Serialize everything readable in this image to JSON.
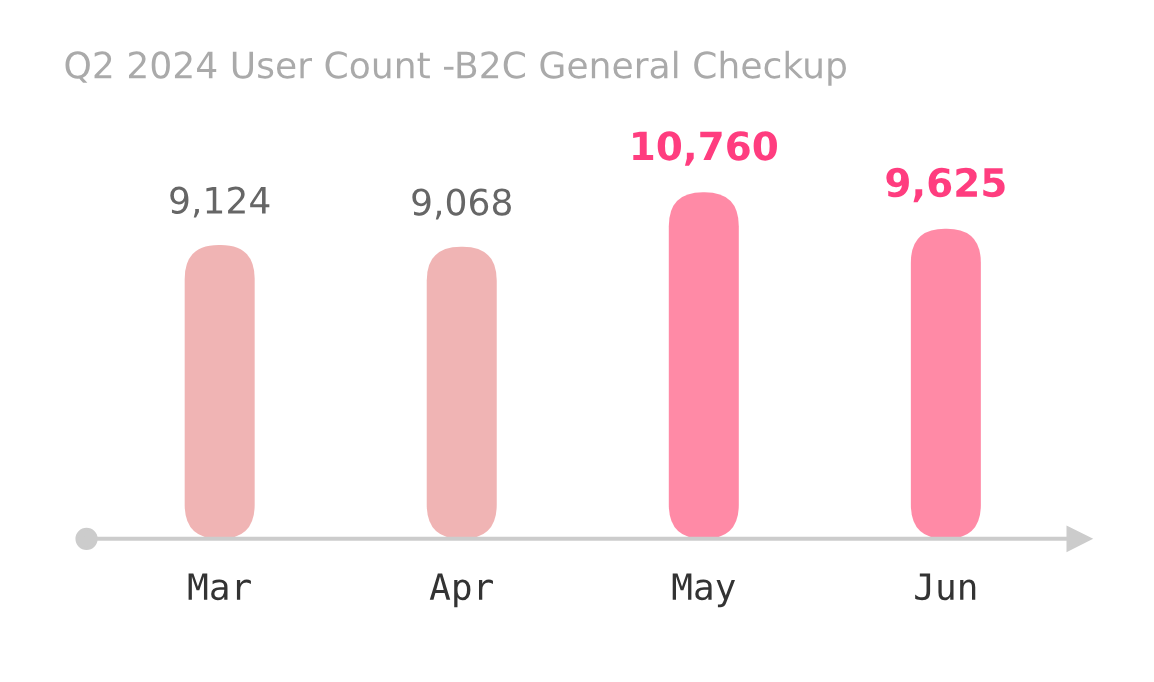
{
  "chart_data": {
    "type": "bar",
    "title": "Q2 2024 User Count -B2C General Checkup",
    "categories": [
      "Mar",
      "Apr",
      "May",
      "Jun"
    ],
    "values": [
      9124,
      9068,
      10760,
      9625
    ],
    "colors": [
      "#f0b4b4",
      "#f0b4b4",
      "#ff8aa6",
      "#ff8aa6"
    ],
    "value_labels": [
      "9,124",
      "9,068",
      "10,760",
      "9,625"
    ],
    "grid": false,
    "legend": false
  }
}
